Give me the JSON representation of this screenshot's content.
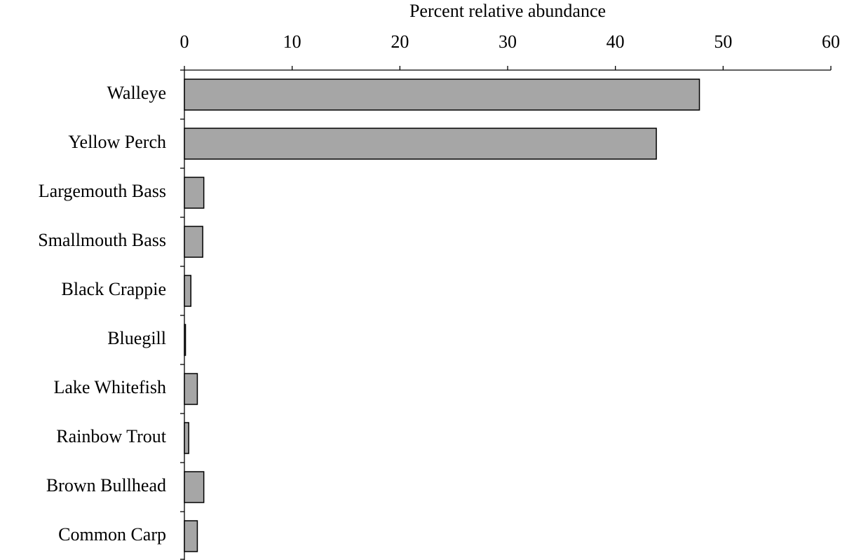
{
  "chart_data": {
    "type": "bar",
    "orientation": "horizontal",
    "xlabel": "Percent relative abundance",
    "categories": [
      "Walleye",
      "Yellow Perch",
      "Largemouth Bass",
      "Smallmouth Bass",
      "Black Crappie",
      "Bluegill",
      "Lake Whitefish",
      "Rainbow Trout",
      "Brown Bullhead",
      "Common Carp"
    ],
    "values": [
      47.8,
      43.8,
      1.8,
      1.7,
      0.6,
      0.1,
      1.2,
      0.4,
      1.8,
      1.2
    ],
    "color": "#a6a6a6",
    "xlim": [
      0,
      60
    ],
    "xticks": [
      0,
      10,
      20,
      30,
      40,
      50,
      60
    ]
  }
}
